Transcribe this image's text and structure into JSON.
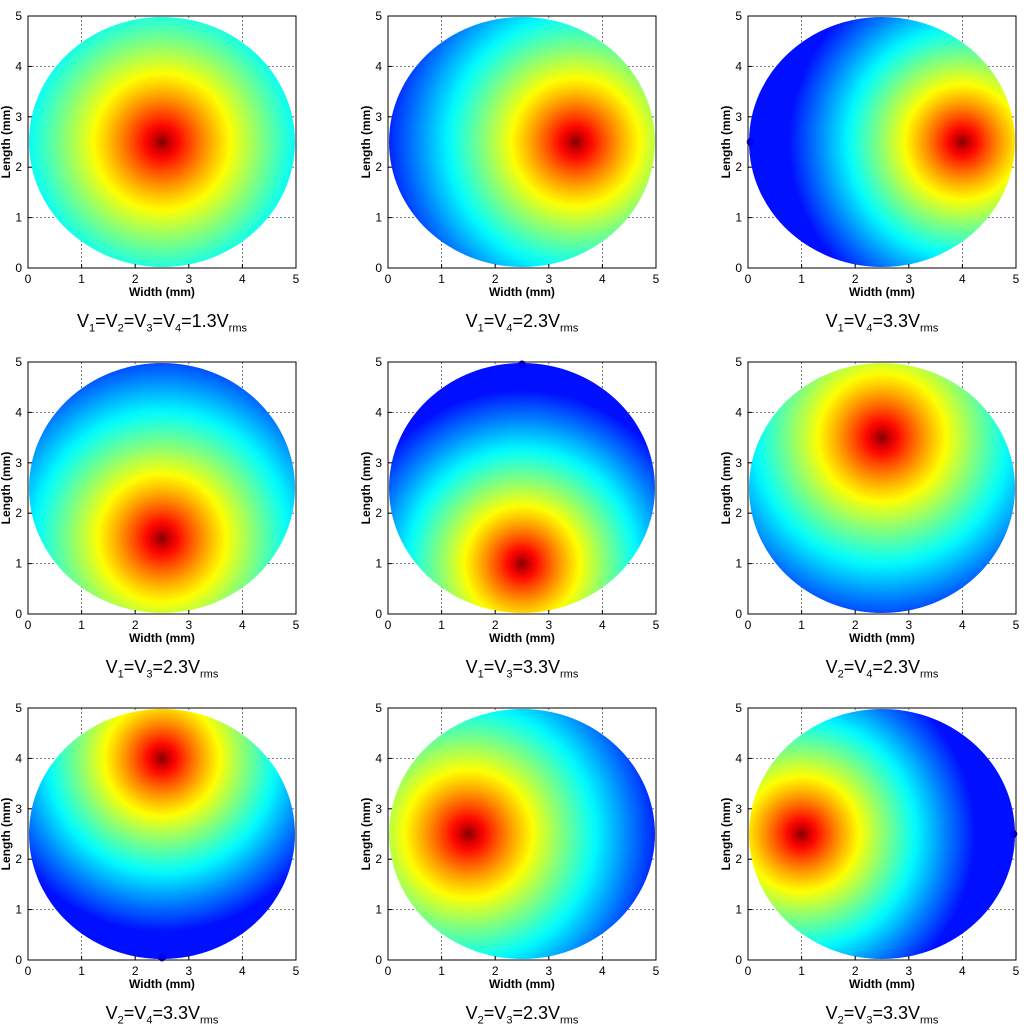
{
  "figure": {
    "colormap": "jet",
    "background": "#ffffff"
  },
  "chart_data": [
    {
      "type": "heatmap",
      "xlabel": "Width (mm)",
      "ylabel": "Length (mm)",
      "xlim": [
        0,
        5
      ],
      "ylim": [
        0,
        5
      ],
      "xticks": [
        0,
        1,
        2,
        3,
        4,
        5
      ],
      "yticks": [
        0,
        1,
        2,
        3,
        4,
        5
      ],
      "grid": true,
      "peak": [
        2.5,
        2.5
      ],
      "spread": 1.6,
      "notch": "",
      "caption": {
        "v1": "V",
        "s1": "1",
        "v2": "=V",
        "s2": "2",
        "v3": "=V",
        "s3": "3",
        "v4": "=V",
        "s4": "4",
        "val": "=1.3V",
        "unit": "rms"
      }
    },
    {
      "type": "heatmap",
      "xlabel": "Width (mm)",
      "ylabel": "Length (mm)",
      "xlim": [
        0,
        5
      ],
      "ylim": [
        0,
        5
      ],
      "xticks": [
        0,
        1,
        2,
        3,
        4,
        5
      ],
      "yticks": [
        0,
        1,
        2,
        3,
        4,
        5
      ],
      "grid": true,
      "peak": [
        3.5,
        2.5
      ],
      "spread": 1.5,
      "notch": "",
      "caption": {
        "v1": "V",
        "s1": "1",
        "v2": "=V",
        "s2": "4",
        "val": "=2.3V",
        "unit": "rms"
      }
    },
    {
      "type": "heatmap",
      "xlabel": "Width (mm)",
      "ylabel": "Length (mm)",
      "xlim": [
        0,
        5
      ],
      "ylim": [
        0,
        5
      ],
      "xticks": [
        0,
        1,
        2,
        3,
        4,
        5
      ],
      "yticks": [
        0,
        1,
        2,
        3,
        4,
        5
      ],
      "grid": true,
      "peak": [
        4.0,
        2.5
      ],
      "spread": 1.35,
      "notch": "left",
      "caption": {
        "v1": "V",
        "s1": "1",
        "v2": "=V",
        "s2": "4",
        "val": "=3.3V",
        "unit": "rms"
      }
    },
    {
      "type": "heatmap",
      "xlabel": "Width (mm)",
      "ylabel": "Length (mm)",
      "xlim": [
        0,
        5
      ],
      "ylim": [
        0,
        5
      ],
      "xticks": [
        0,
        1,
        2,
        3,
        4,
        5
      ],
      "yticks": [
        0,
        1,
        2,
        3,
        4,
        5
      ],
      "grid": true,
      "peak": [
        2.5,
        1.5
      ],
      "spread": 1.5,
      "notch": "",
      "caption": {
        "v1": "V",
        "s1": "1",
        "v2": "=V",
        "s2": "3",
        "val": "=2.3V",
        "unit": "rms"
      }
    },
    {
      "type": "heatmap",
      "xlabel": "Width (mm)",
      "ylabel": "Length (mm)",
      "xlim": [
        0,
        5
      ],
      "ylim": [
        0,
        5
      ],
      "xticks": [
        0,
        1,
        2,
        3,
        4,
        5
      ],
      "yticks": [
        0,
        1,
        2,
        3,
        4,
        5
      ],
      "grid": true,
      "peak": [
        2.5,
        1.0
      ],
      "spread": 1.35,
      "notch": "top",
      "caption": {
        "v1": "V",
        "s1": "1",
        "v2": "=V",
        "s2": "3",
        "val": "=3.3V",
        "unit": "rms"
      }
    },
    {
      "type": "heatmap",
      "xlabel": "Width (mm)",
      "ylabel": "Length (mm)",
      "xlim": [
        0,
        5
      ],
      "ylim": [
        0,
        5
      ],
      "xticks": [
        0,
        1,
        2,
        3,
        4,
        5
      ],
      "yticks": [
        0,
        1,
        2,
        3,
        4,
        5
      ],
      "grid": true,
      "peak": [
        2.5,
        3.5
      ],
      "spread": 1.5,
      "notch": "",
      "caption": {
        "v1": "V",
        "s1": "2",
        "v2": "=V",
        "s2": "4",
        "val": "=2.3V",
        "unit": "rms"
      }
    },
    {
      "type": "heatmap",
      "xlabel": "Width (mm)",
      "ylabel": "Length (mm)",
      "xlim": [
        0,
        5
      ],
      "ylim": [
        0,
        5
      ],
      "xticks": [
        0,
        1,
        2,
        3,
        4,
        5
      ],
      "yticks": [
        0,
        1,
        2,
        3,
        4,
        5
      ],
      "grid": true,
      "peak": [
        2.5,
        4.0
      ],
      "spread": 1.35,
      "notch": "bottom",
      "caption": {
        "v1": "V",
        "s1": "2",
        "v2": "=V",
        "s2": "4",
        "val": "=3.3V",
        "unit": "rms"
      }
    },
    {
      "type": "heatmap",
      "xlabel": "Width (mm)",
      "ylabel": "Length (mm)",
      "xlim": [
        0,
        5
      ],
      "ylim": [
        0,
        5
      ],
      "xticks": [
        0,
        1,
        2,
        3,
        4,
        5
      ],
      "yticks": [
        0,
        1,
        2,
        3,
        4,
        5
      ],
      "grid": true,
      "peak": [
        1.5,
        2.5
      ],
      "spread": 1.5,
      "notch": "",
      "caption": {
        "v1": "V",
        "s1": "2",
        "v2": "=V",
        "s2": "3",
        "val": "=2.3V",
        "unit": "rms"
      }
    },
    {
      "type": "heatmap",
      "xlabel": "Width (mm)",
      "ylabel": "Length (mm)",
      "xlim": [
        0,
        5
      ],
      "ylim": [
        0,
        5
      ],
      "xticks": [
        0,
        1,
        2,
        3,
        4,
        5
      ],
      "yticks": [
        0,
        1,
        2,
        3,
        4,
        5
      ],
      "grid": true,
      "peak": [
        1.0,
        2.5
      ],
      "spread": 1.35,
      "notch": "right",
      "caption": {
        "v1": "V",
        "s1": "2",
        "v2": "=V",
        "s2": "3",
        "val": "=3.3V",
        "unit": "rms"
      }
    }
  ]
}
